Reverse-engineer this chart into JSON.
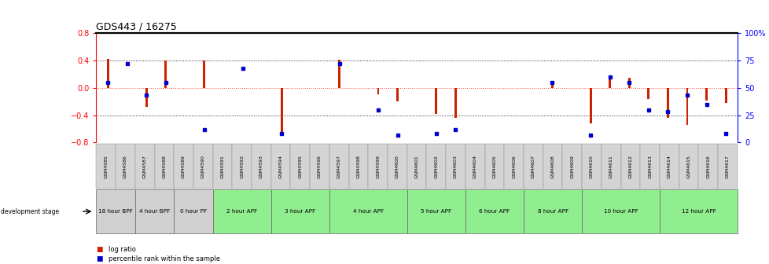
{
  "title": "GDS443 / 16275",
  "samples": [
    "GSM4585",
    "GSM4586",
    "GSM4587",
    "GSM4588",
    "GSM4589",
    "GSM4590",
    "GSM4591",
    "GSM4592",
    "GSM4593",
    "GSM4594",
    "GSM4595",
    "GSM4596",
    "GSM4597",
    "GSM4598",
    "GSM4599",
    "GSM4600",
    "GSM4601",
    "GSM4602",
    "GSM4603",
    "GSM4604",
    "GSM4605",
    "GSM4606",
    "GSM4607",
    "GSM4608",
    "GSM4609",
    "GSM4610",
    "GSM4611",
    "GSM4612",
    "GSM4613",
    "GSM4614",
    "GSM4615",
    "GSM4616",
    "GSM4617"
  ],
  "log_ratios": [
    0.42,
    0.0,
    -0.28,
    0.4,
    0.0,
    0.4,
    0.0,
    0.0,
    0.0,
    -0.7,
    0.0,
    0.0,
    0.41,
    0.0,
    -0.1,
    -0.2,
    0.0,
    -0.38,
    -0.44,
    0.0,
    0.0,
    0.0,
    0.0,
    0.05,
    0.0,
    -0.52,
    0.18,
    0.15,
    -0.16,
    -0.44,
    -0.54,
    -0.19,
    -0.22
  ],
  "percentile_ranks": [
    55,
    72,
    43,
    55,
    null,
    12,
    null,
    68,
    null,
    8,
    null,
    null,
    72,
    null,
    30,
    7,
    null,
    8,
    12,
    null,
    null,
    null,
    null,
    55,
    null,
    7,
    60,
    55,
    30,
    28,
    43,
    35,
    8
  ],
  "stages": [
    {
      "label": "18 hour BPF",
      "start": 0,
      "end": 1,
      "color": "#d0d0d0"
    },
    {
      "label": "4 hour BPF",
      "start": 2,
      "end": 3,
      "color": "#d0d0d0"
    },
    {
      "label": "0 hour PF",
      "start": 4,
      "end": 5,
      "color": "#d0d0d0"
    },
    {
      "label": "2 hour APF",
      "start": 6,
      "end": 8,
      "color": "#90ee90"
    },
    {
      "label": "3 hour APF",
      "start": 9,
      "end": 11,
      "color": "#90ee90"
    },
    {
      "label": "4 hour APF",
      "start": 12,
      "end": 15,
      "color": "#90ee90"
    },
    {
      "label": "5 hour APF",
      "start": 16,
      "end": 18,
      "color": "#90ee90"
    },
    {
      "label": "6 hour APF",
      "start": 19,
      "end": 21,
      "color": "#90ee90"
    },
    {
      "label": "8 hour APF",
      "start": 22,
      "end": 24,
      "color": "#90ee90"
    },
    {
      "label": "10 hour APF",
      "start": 25,
      "end": 28,
      "color": "#90ee90"
    },
    {
      "label": "12 hour APF",
      "start": 29,
      "end": 32,
      "color": "#90ee90"
    }
  ],
  "ylim": [
    -0.8,
    0.8
  ],
  "yticks_left": [
    -0.8,
    -0.4,
    0.0,
    0.4,
    0.8
  ],
  "yticks_right": [
    0,
    25,
    50,
    75,
    100
  ],
  "bar_color": "#cc2200",
  "dot_color": "#0000cc",
  "zero_line_color": "#ff4444",
  "bg_color": "#ffffff"
}
